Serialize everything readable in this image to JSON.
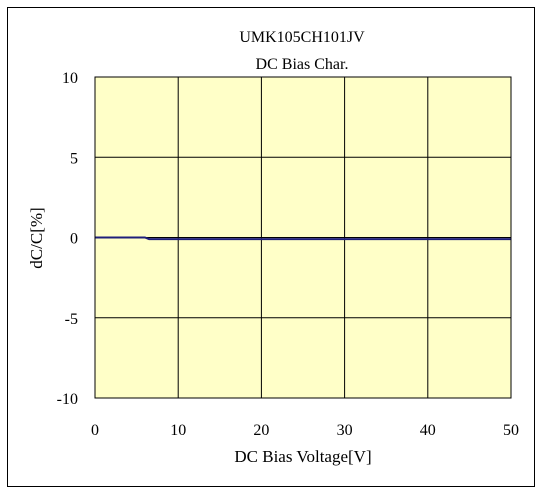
{
  "chart_data": {
    "type": "line",
    "title": "UMK105CH101JV",
    "subtitle": "DC Bias Char.",
    "xlabel": "DC Bias Voltage[V]",
    "ylabel": "dC/C[%]",
    "xlim": [
      0,
      50
    ],
    "ylim": [
      -10,
      10
    ],
    "xticks": [
      0,
      10,
      20,
      30,
      40,
      50
    ],
    "yticks": [
      10,
      5,
      0,
      -5,
      -10
    ],
    "grid": true,
    "legend": "none",
    "colors": {
      "plot_background": "#ffffc8",
      "series_line": "#1f1f7a",
      "grid": "#000000"
    },
    "series": [
      {
        "x": [
          0,
          6,
          6.5,
          10,
          20,
          30,
          40,
          50
        ],
        "y": [
          0,
          0,
          -0.1,
          -0.1,
          -0.1,
          -0.1,
          -0.1,
          -0.1
        ]
      }
    ]
  }
}
